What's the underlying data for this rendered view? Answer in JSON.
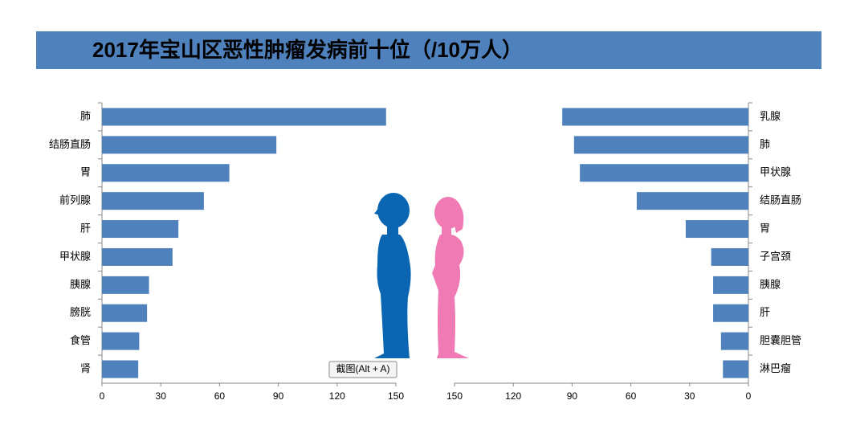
{
  "header": {
    "title": "2017年宝山区恶性肿瘤发病前十位（/10万人）",
    "tooltip": "截图(Alt + A)"
  },
  "chart_data": [
    {
      "type": "bar",
      "orientation": "horizontal",
      "x_reversed": false,
      "color": "#4f81bd",
      "categories": [
        "肺",
        "结肠直肠",
        "胃",
        "前列腺",
        "肝",
        "甲状腺",
        "胰腺",
        "膀胱",
        "食管",
        "肾"
      ],
      "values": [
        145,
        89,
        65,
        52,
        39,
        36,
        24,
        23,
        19,
        18.5
      ],
      "xlim": [
        0,
        150
      ],
      "xticks": [
        0,
        30,
        60,
        90,
        120,
        150
      ]
    },
    {
      "type": "bar",
      "orientation": "horizontal",
      "x_reversed": true,
      "color": "#4f81bd",
      "categories": [
        "乳腺",
        "肺",
        "甲状腺",
        "结肠直肠",
        "胃",
        "子宫颈",
        "胰腺",
        "肝",
        "胆囊胆管",
        "淋巴瘤"
      ],
      "values": [
        95,
        89,
        86,
        57,
        32,
        19,
        18,
        18,
        14,
        13
      ],
      "xlim": [
        0,
        150
      ],
      "xticks": [
        0,
        30,
        60,
        90,
        120,
        150
      ]
    }
  ]
}
